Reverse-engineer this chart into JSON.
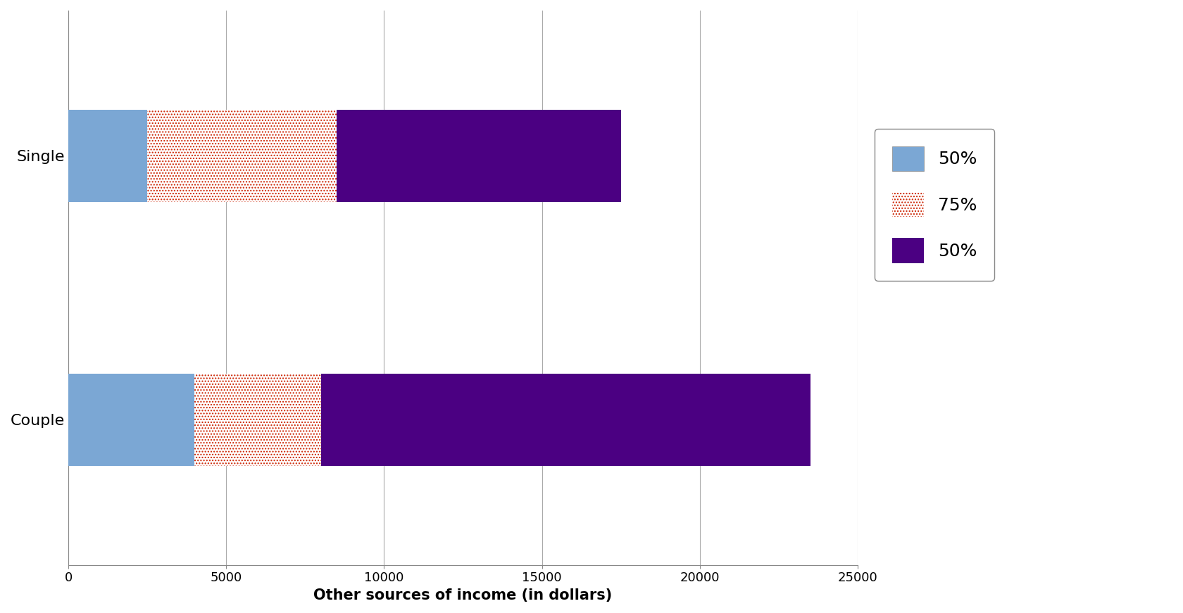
{
  "categories": [
    "Single",
    "Couple"
  ],
  "seg1_values": [
    2500,
    4000
  ],
  "seg2_values": [
    6000,
    4000
  ],
  "seg3_values": [
    9000,
    15500
  ],
  "seg1_color": "#7BA7D4",
  "seg2_facecolor": "#ffffff",
  "seg2_hatch_color": "#cc2200",
  "seg3_color": "#4B0082",
  "xlabel": "Other sources of income (in dollars)",
  "xlim": [
    0,
    25000
  ],
  "xticks": [
    0,
    5000,
    10000,
    15000,
    20000,
    25000
  ],
  "legend_labels": [
    "50%",
    "75%",
    "50%"
  ],
  "bar_height": 0.35,
  "figsize": [
    16.81,
    8.71
  ],
  "dpi": 100,
  "bg_color": "#ffffff",
  "plot_bg_color": "#ffffff",
  "xlabel_fontsize": 15,
  "tick_fontsize": 13,
  "legend_fontsize": 18,
  "ytick_fontsize": 16,
  "grid_color": "#aaaaaa",
  "spine_color": "#888888"
}
